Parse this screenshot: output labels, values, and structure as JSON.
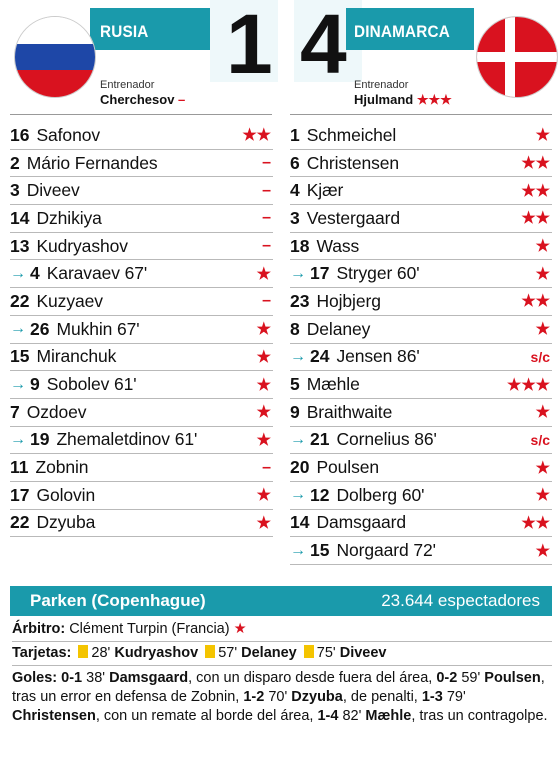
{
  "home": {
    "name": "RUSIA",
    "score": "1",
    "coach_label": "Entrenador",
    "coach": "Cherchesov",
    "coach_rating": "–",
    "flag": [
      "#ffffff",
      "#1e47a7",
      "#d9121f"
    ]
  },
  "away": {
    "name": "DINAMARCA",
    "score": "4",
    "coach_label": "Entrenador",
    "coach": "Hjulmand",
    "coach_rating": "★★★",
    "flag": [
      "#d9121f",
      "#ffffff"
    ]
  },
  "home_players": [
    {
      "sub": false,
      "num": "16",
      "name": "Safonov",
      "rating": "★★"
    },
    {
      "sub": false,
      "num": "2",
      "name": "Mário Fernandes",
      "rating": "–"
    },
    {
      "sub": false,
      "num": "3",
      "name": "Diveev",
      "rating": "–"
    },
    {
      "sub": false,
      "num": "14",
      "name": "Dzhikiya",
      "rating": "–"
    },
    {
      "sub": false,
      "num": "13",
      "name": "Kudryashov",
      "rating": "–"
    },
    {
      "sub": true,
      "num": "4",
      "name": "Karavaev 67'",
      "rating": "★"
    },
    {
      "sub": false,
      "num": "22",
      "name": "Kuzyaev",
      "rating": "–"
    },
    {
      "sub": true,
      "num": "26",
      "name": "Mukhin 67'",
      "rating": "★"
    },
    {
      "sub": false,
      "num": "15",
      "name": "Miranchuk",
      "rating": "★"
    },
    {
      "sub": true,
      "num": "9",
      "name": "Sobolev 61'",
      "rating": "★"
    },
    {
      "sub": false,
      "num": "7",
      "name": "Ozdoev",
      "rating": "★"
    },
    {
      "sub": true,
      "num": "19",
      "name": "Zhemaletdinov 61'",
      "rating": "★"
    },
    {
      "sub": false,
      "num": "11",
      "name": "Zobnin",
      "rating": "–"
    },
    {
      "sub": false,
      "num": "17",
      "name": "Golovin",
      "rating": "★"
    },
    {
      "sub": false,
      "num": "22",
      "name": "Dzyuba",
      "rating": "★"
    }
  ],
  "away_players": [
    {
      "sub": false,
      "num": "1",
      "name": "Schmeichel",
      "rating": "★"
    },
    {
      "sub": false,
      "num": "6",
      "name": "Christensen",
      "rating": "★★"
    },
    {
      "sub": false,
      "num": "4",
      "name": "Kjær",
      "rating": "★★"
    },
    {
      "sub": false,
      "num": "3",
      "name": "Vestergaard",
      "rating": "★★"
    },
    {
      "sub": false,
      "num": "18",
      "name": "Wass",
      "rating": "★"
    },
    {
      "sub": true,
      "num": "17",
      "name": "Stryger 60'",
      "rating": "★"
    },
    {
      "sub": false,
      "num": "23",
      "name": "Hojbjerg",
      "rating": "★★"
    },
    {
      "sub": false,
      "num": "8",
      "name": "Delaney",
      "rating": "★"
    },
    {
      "sub": true,
      "num": "24",
      "name": "Jensen 86'",
      "rating": "s/c"
    },
    {
      "sub": false,
      "num": "5",
      "name": "Mæhle",
      "rating": "★★★"
    },
    {
      "sub": false,
      "num": "9",
      "name": "Braithwaite",
      "rating": "★"
    },
    {
      "sub": true,
      "num": "21",
      "name": "Cornelius 86'",
      "rating": "s/c"
    },
    {
      "sub": false,
      "num": "20",
      "name": "Poulsen",
      "rating": "★"
    },
    {
      "sub": true,
      "num": "12",
      "name": "Dolberg 60'",
      "rating": "★"
    },
    {
      "sub": false,
      "num": "14",
      "name": "Damsgaard",
      "rating": "★★"
    },
    {
      "sub": true,
      "num": "15",
      "name": "Norgaard 72'",
      "rating": "★"
    }
  ],
  "arrow_icon": "→",
  "venue": {
    "name": "Parken (Copenhague)",
    "attendance": "23.644 espectadores"
  },
  "referee": {
    "label": "Árbitro:",
    "name": "Clément Turpin (Francia)",
    "rating": "★"
  },
  "cards": {
    "label": "Tarjetas:",
    "items": [
      {
        "minute": "28'",
        "player": "Kudryashov"
      },
      {
        "minute": "57'",
        "player": "Delaney"
      },
      {
        "minute": "75'",
        "player": "Diveev"
      }
    ]
  },
  "goals": {
    "label": "Goles:",
    "items": [
      {
        "score": "0-1",
        "minute": "38'",
        "player": "Damsgaard",
        "desc": ", con un disparo desde fuera del área, "
      },
      {
        "score": "0-2",
        "minute": "59'",
        "player": "Poulsen",
        "desc": ", tras un error en defensa de Zobnin, "
      },
      {
        "score": "1-2",
        "minute": "70'",
        "player": "Dzyuba",
        "desc": ", de penalti, "
      },
      {
        "score": "1-3",
        "minute": "79'",
        "player": "Christensen",
        "desc": ", con un remate al borde del área, "
      },
      {
        "score": "1-4",
        "minute": "82'",
        "player": "Mæhle",
        "desc": ", tras un contragolpe."
      }
    ]
  }
}
